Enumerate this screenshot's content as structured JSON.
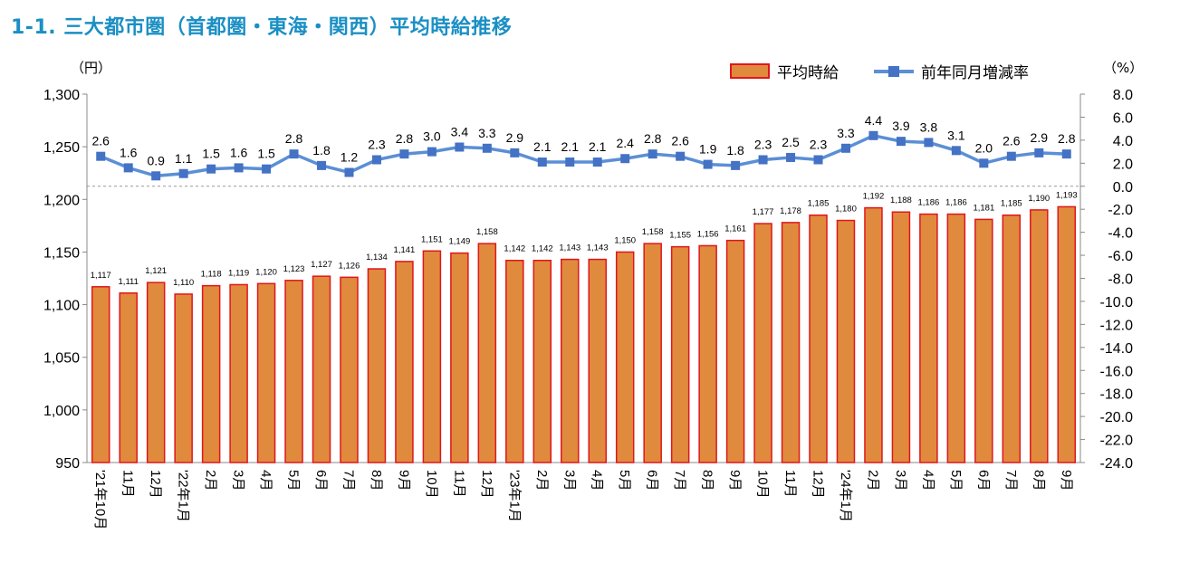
{
  "title": "1-1. 三大都市圏（首都圏・東海・関西）平均時給推移",
  "left_unit": "（円）",
  "right_unit": "（%）",
  "colors": {
    "title": "#1a8fc4",
    "bar_fill": "#e08a3d",
    "bar_stroke": "#e0161b",
    "line": "#5b8fd6",
    "marker": "#4472c4"
  },
  "chart_data": {
    "type": "bar",
    "categories": [
      "'21年10月",
      "11月",
      "12月",
      "'22年1月",
      "2月",
      "3月",
      "4月",
      "5月",
      "6月",
      "7月",
      "8月",
      "9月",
      "10月",
      "11月",
      "12月",
      "'23年1月",
      "2月",
      "3月",
      "4月",
      "5月",
      "6月",
      "7月",
      "8月",
      "9月",
      "10月",
      "11月",
      "12月",
      "'24年1月",
      "2月",
      "3月",
      "4月",
      "5月",
      "6月",
      "7月",
      "8月",
      "9月"
    ],
    "series": [
      {
        "name": "平均時給",
        "type": "bar",
        "axis": "left",
        "values": [
          1117,
          1111,
          1121,
          1110,
          1118,
          1119,
          1120,
          1123,
          1127,
          1126,
          1134,
          1141,
          1151,
          1149,
          1158,
          1142,
          1142,
          1143,
          1143,
          1150,
          1158,
          1155,
          1156,
          1161,
          1177,
          1178,
          1185,
          1180,
          1192,
          1188,
          1186,
          1186,
          1181,
          1185,
          1190,
          1193
        ]
      },
      {
        "name": "前年同月増減率",
        "type": "line",
        "axis": "right",
        "values": [
          2.6,
          1.6,
          0.9,
          1.1,
          1.5,
          1.6,
          1.5,
          2.8,
          1.8,
          1.2,
          2.3,
          2.8,
          3.0,
          3.4,
          3.3,
          2.9,
          2.1,
          2.1,
          2.1,
          2.4,
          2.8,
          2.6,
          1.9,
          1.8,
          2.3,
          2.5,
          2.3,
          3.3,
          4.4,
          3.9,
          3.8,
          3.1,
          2.0,
          2.6,
          2.9,
          2.8
        ]
      }
    ],
    "left_axis": {
      "ylim": [
        950,
        1300
      ],
      "ticks": [
        950,
        1000,
        1050,
        1100,
        1150,
        1200,
        1250,
        1300
      ]
    },
    "right_axis": {
      "ylim": [
        -24,
        8
      ],
      "ticks": [
        8,
        6,
        4,
        2,
        0,
        -2,
        -4,
        -6,
        -8,
        -10,
        -12,
        -14,
        -16,
        -18,
        -20,
        -22,
        -24
      ]
    }
  }
}
